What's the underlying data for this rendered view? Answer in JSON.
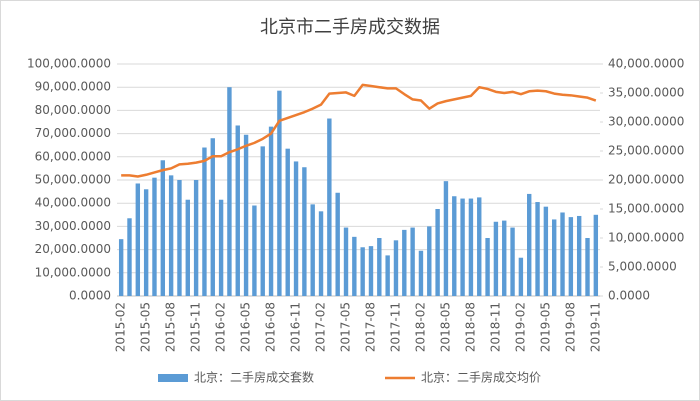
{
  "chart_data": {
    "type": "bar-line",
    "title": "北京市二手房成交数据",
    "categories": [
      "2015-02",
      null,
      null,
      "2015-05",
      null,
      null,
      "2015-08",
      null,
      null,
      "2015-11",
      null,
      null,
      "2016-02",
      null,
      null,
      "2016-05",
      null,
      null,
      "2016-08",
      null,
      null,
      "2016-11",
      null,
      null,
      "2017-02",
      null,
      null,
      "2017-05",
      null,
      null,
      "2017-08",
      null,
      null,
      "2017-11",
      null,
      null,
      "2018-02",
      null,
      null,
      "2018-05",
      null,
      null,
      "2018-08",
      null,
      null,
      "2018-11",
      null,
      null,
      "2019-02",
      null,
      null,
      "2019-05",
      null,
      null,
      "2019-08",
      null,
      null,
      "2019-11"
    ],
    "series": [
      {
        "name": "北京：二手房成交套数",
        "color": "#5b9bd5",
        "type": "bar",
        "axis": "y",
        "values": [
          24500,
          33500,
          48500,
          46000,
          51000,
          58500,
          52000,
          50000,
          41500,
          50000,
          64000,
          68000,
          41500,
          90000,
          73500,
          69500,
          39000,
          64500,
          73000,
          88500,
          63500,
          58000,
          55500,
          39500,
          36500,
          76500,
          44500,
          29500,
          25500,
          21000,
          21500,
          25000,
          17500,
          24000,
          28500,
          29500,
          19500,
          30000,
          37500,
          49500,
          43000,
          42000,
          42000,
          42500,
          25000,
          32000,
          32500,
          29500,
          16500,
          44000,
          40500,
          38500,
          33000,
          36000,
          34000,
          34500,
          25000,
          35000
        ]
      },
      {
        "name": "北京：二手房成交均价",
        "color": "#ed7d31",
        "type": "line",
        "axis": "y2",
        "values": [
          20800,
          20800,
          20600,
          20900,
          21300,
          21700,
          22000,
          22700,
          22800,
          23000,
          23300,
          24100,
          24100,
          24800,
          25300,
          25900,
          26400,
          27100,
          28000,
          30200,
          30700,
          31200,
          31700,
          32300,
          33000,
          34900,
          35000,
          35100,
          34500,
          36400,
          36200,
          36000,
          35800,
          35800,
          34800,
          33900,
          33700,
          32300,
          33200,
          33600,
          33900,
          34200,
          34500,
          36000,
          35700,
          35200,
          35000,
          35200,
          34800,
          35300,
          35400,
          35300,
          34900,
          34700,
          34600,
          34400,
          34200,
          33700
        ]
      }
    ],
    "ylim": [
      0,
      100000
    ],
    "yticks": [
      {
        "value": 0,
        "label": "0.0000"
      },
      {
        "value": 10000,
        "label": "10,000.0000"
      },
      {
        "value": 20000,
        "label": "20,000.0000"
      },
      {
        "value": 30000,
        "label": "30,000.0000"
      },
      {
        "value": 40000,
        "label": "40,000.0000"
      },
      {
        "value": 50000,
        "label": "50,000.0000"
      },
      {
        "value": 60000,
        "label": "60,000.0000"
      },
      {
        "value": 70000,
        "label": "70,000.0000"
      },
      {
        "value": 80000,
        "label": "80,000.0000"
      },
      {
        "value": 90000,
        "label": "90,000.0000"
      },
      {
        "value": 100000,
        "label": "100,000.0000"
      }
    ],
    "y2lim": [
      0,
      40000
    ],
    "y2ticks": [
      {
        "value": 0,
        "label": "0.0000"
      },
      {
        "value": 5000,
        "label": "5,000.0000"
      },
      {
        "value": 10000,
        "label": "10,000.0000"
      },
      {
        "value": 15000,
        "label": "15,000.0000"
      },
      {
        "value": 20000,
        "label": "20,000.0000"
      },
      {
        "value": 25000,
        "label": "25,000.0000"
      },
      {
        "value": 30000,
        "label": "30,000.0000"
      },
      {
        "value": 35000,
        "label": "35,000.0000"
      },
      {
        "value": 40000,
        "label": "40,000.0000"
      }
    ],
    "grid": true,
    "legend": "bottom"
  }
}
